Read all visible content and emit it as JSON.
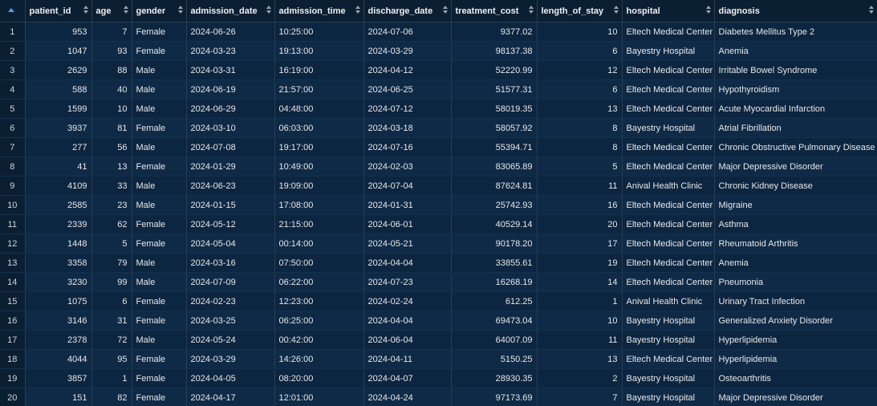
{
  "columns": [
    {
      "key": "rownum",
      "label": ""
    },
    {
      "key": "patient_id",
      "label": "patient_id"
    },
    {
      "key": "age",
      "label": "age"
    },
    {
      "key": "gender",
      "label": "gender"
    },
    {
      "key": "admission_date",
      "label": "admission_date"
    },
    {
      "key": "admission_time",
      "label": "admission_time"
    },
    {
      "key": "discharge_date",
      "label": "discharge_date"
    },
    {
      "key": "treatment_cost",
      "label": "treatment_cost"
    },
    {
      "key": "length_of_stay",
      "label": "length_of_stay"
    },
    {
      "key": "hospital",
      "label": "hospital"
    },
    {
      "key": "diagnosis",
      "label": "diagnosis"
    }
  ],
  "rows": [
    {
      "n": "1",
      "patient_id": "953",
      "age": "7",
      "gender": "Female",
      "admission_date": "2024-06-26",
      "admission_time": "10:25:00",
      "discharge_date": "2024-07-06",
      "treatment_cost": "9377.02",
      "length_of_stay": "10",
      "hospital": "Eltech Medical Center",
      "diagnosis": "Diabetes Mellitus Type 2"
    },
    {
      "n": "2",
      "patient_id": "1047",
      "age": "93",
      "gender": "Female",
      "admission_date": "2024-03-23",
      "admission_time": "19:13:00",
      "discharge_date": "2024-03-29",
      "treatment_cost": "98137.38",
      "length_of_stay": "6",
      "hospital": "Bayestry Hospital",
      "diagnosis": "Anemia"
    },
    {
      "n": "3",
      "patient_id": "2629",
      "age": "88",
      "gender": "Male",
      "admission_date": "2024-03-31",
      "admission_time": "16:19:00",
      "discharge_date": "2024-04-12",
      "treatment_cost": "52220.99",
      "length_of_stay": "12",
      "hospital": "Eltech Medical Center",
      "diagnosis": "Irritable Bowel Syndrome"
    },
    {
      "n": "4",
      "patient_id": "588",
      "age": "40",
      "gender": "Male",
      "admission_date": "2024-06-19",
      "admission_time": "21:57:00",
      "discharge_date": "2024-06-25",
      "treatment_cost": "51577.31",
      "length_of_stay": "6",
      "hospital": "Eltech Medical Center",
      "diagnosis": "Hypothyroidism"
    },
    {
      "n": "5",
      "patient_id": "1599",
      "age": "10",
      "gender": "Male",
      "admission_date": "2024-06-29",
      "admission_time": "04:48:00",
      "discharge_date": "2024-07-12",
      "treatment_cost": "58019.35",
      "length_of_stay": "13",
      "hospital": "Eltech Medical Center",
      "diagnosis": "Acute Myocardial Infarction"
    },
    {
      "n": "6",
      "patient_id": "3937",
      "age": "81",
      "gender": "Female",
      "admission_date": "2024-03-10",
      "admission_time": "06:03:00",
      "discharge_date": "2024-03-18",
      "treatment_cost": "58057.92",
      "length_of_stay": "8",
      "hospital": "Bayestry Hospital",
      "diagnosis": "Atrial Fibrillation"
    },
    {
      "n": "7",
      "patient_id": "277",
      "age": "56",
      "gender": "Male",
      "admission_date": "2024-07-08",
      "admission_time": "19:17:00",
      "discharge_date": "2024-07-16",
      "treatment_cost": "55394.71",
      "length_of_stay": "8",
      "hospital": "Eltech Medical Center",
      "diagnosis": "Chronic Obstructive Pulmonary Disease"
    },
    {
      "n": "8",
      "patient_id": "41",
      "age": "13",
      "gender": "Female",
      "admission_date": "2024-01-29",
      "admission_time": "10:49:00",
      "discharge_date": "2024-02-03",
      "treatment_cost": "83065.89",
      "length_of_stay": "5",
      "hospital": "Eltech Medical Center",
      "diagnosis": "Major Depressive Disorder"
    },
    {
      "n": "9",
      "patient_id": "4109",
      "age": "33",
      "gender": "Male",
      "admission_date": "2024-06-23",
      "admission_time": "19:09:00",
      "discharge_date": "2024-07-04",
      "treatment_cost": "87624.81",
      "length_of_stay": "11",
      "hospital": "Anival Health Clinic",
      "diagnosis": "Chronic Kidney Disease"
    },
    {
      "n": "10",
      "patient_id": "2585",
      "age": "23",
      "gender": "Male",
      "admission_date": "2024-01-15",
      "admission_time": "17:08:00",
      "discharge_date": "2024-01-31",
      "treatment_cost": "25742.93",
      "length_of_stay": "16",
      "hospital": "Eltech Medical Center",
      "diagnosis": "Migraine"
    },
    {
      "n": "11",
      "patient_id": "2339",
      "age": "62",
      "gender": "Female",
      "admission_date": "2024-05-12",
      "admission_time": "21:15:00",
      "discharge_date": "2024-06-01",
      "treatment_cost": "40529.14",
      "length_of_stay": "20",
      "hospital": "Eltech Medical Center",
      "diagnosis": "Asthma"
    },
    {
      "n": "12",
      "patient_id": "1448",
      "age": "5",
      "gender": "Female",
      "admission_date": "2024-05-04",
      "admission_time": "00:14:00",
      "discharge_date": "2024-05-21",
      "treatment_cost": "90178.20",
      "length_of_stay": "17",
      "hospital": "Eltech Medical Center",
      "diagnosis": "Rheumatoid Arthritis"
    },
    {
      "n": "13",
      "patient_id": "3358",
      "age": "79",
      "gender": "Male",
      "admission_date": "2024-03-16",
      "admission_time": "07:50:00",
      "discharge_date": "2024-04-04",
      "treatment_cost": "33855.61",
      "length_of_stay": "19",
      "hospital": "Eltech Medical Center",
      "diagnosis": "Anemia"
    },
    {
      "n": "14",
      "patient_id": "3230",
      "age": "99",
      "gender": "Male",
      "admission_date": "2024-07-09",
      "admission_time": "06:22:00",
      "discharge_date": "2024-07-23",
      "treatment_cost": "16268.19",
      "length_of_stay": "14",
      "hospital": "Eltech Medical Center",
      "diagnosis": "Pneumonia"
    },
    {
      "n": "15",
      "patient_id": "1075",
      "age": "6",
      "gender": "Female",
      "admission_date": "2024-02-23",
      "admission_time": "12:23:00",
      "discharge_date": "2024-02-24",
      "treatment_cost": "612.25",
      "length_of_stay": "1",
      "hospital": "Anival Health Clinic",
      "diagnosis": "Urinary Tract Infection"
    },
    {
      "n": "16",
      "patient_id": "3146",
      "age": "31",
      "gender": "Female",
      "admission_date": "2024-03-25",
      "admission_time": "06:25:00",
      "discharge_date": "2024-04-04",
      "treatment_cost": "69473.04",
      "length_of_stay": "10",
      "hospital": "Bayestry Hospital",
      "diagnosis": "Generalized Anxiety Disorder"
    },
    {
      "n": "17",
      "patient_id": "2378",
      "age": "72",
      "gender": "Male",
      "admission_date": "2024-05-24",
      "admission_time": "00:42:00",
      "discharge_date": "2024-06-04",
      "treatment_cost": "64007.09",
      "length_of_stay": "11",
      "hospital": "Bayestry Hospital",
      "diagnosis": "Hyperlipidemia"
    },
    {
      "n": "18",
      "patient_id": "4044",
      "age": "95",
      "gender": "Female",
      "admission_date": "2024-03-29",
      "admission_time": "14:26:00",
      "discharge_date": "2024-04-11",
      "treatment_cost": "5150.25",
      "length_of_stay": "13",
      "hospital": "Eltech Medical Center",
      "diagnosis": "Hyperlipidemia"
    },
    {
      "n": "19",
      "patient_id": "3857",
      "age": "1",
      "gender": "Female",
      "admission_date": "2024-04-05",
      "admission_time": "08:20:00",
      "discharge_date": "2024-04-07",
      "treatment_cost": "28930.35",
      "length_of_stay": "2",
      "hospital": "Bayestry Hospital",
      "diagnosis": "Osteoarthritis"
    },
    {
      "n": "20",
      "patient_id": "151",
      "age": "82",
      "gender": "Female",
      "admission_date": "2024-04-17",
      "admission_time": "12:01:00",
      "discharge_date": "2024-04-24",
      "treatment_cost": "97173.69",
      "length_of_stay": "7",
      "hospital": "Bayestry Hospital",
      "diagnosis": "Major Depressive Disorder"
    }
  ],
  "colors": {
    "background": "#0c2540",
    "header_background": "#0b1f33",
    "active_sort_arrow": "#4aa3e8"
  }
}
